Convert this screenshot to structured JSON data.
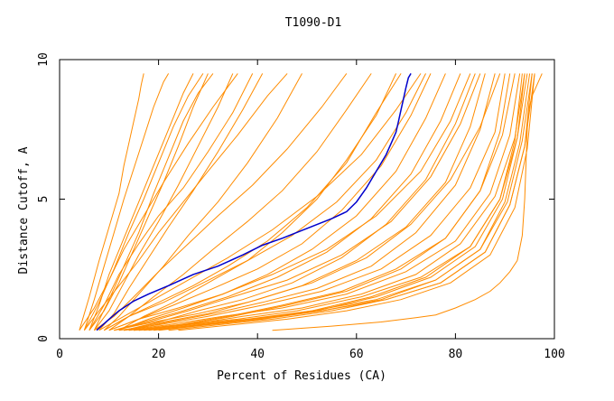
{
  "chart_data": {
    "type": "line",
    "title": "T1090-D1",
    "xlabel": "Percent of Residues (CA)",
    "ylabel": "Distance Cutoff, A",
    "xlim": [
      0,
      100
    ],
    "ylim": [
      0,
      10
    ],
    "x_ticks": [
      0,
      20,
      40,
      60,
      80,
      100
    ],
    "y_ticks": [
      0,
      5,
      10
    ],
    "x_tick_labels": [
      "0",
      "20",
      "40",
      "60",
      "80",
      "100"
    ],
    "y_tick_labels": [
      "0",
      "5",
      "10"
    ],
    "grid": false,
    "legend": "none",
    "colors": {
      "models": "#ff8c00",
      "highlight": "#0000cc",
      "axes": "#000000"
    },
    "highlight_series": {
      "x": [
        7.5,
        10,
        12,
        15,
        18,
        22,
        27,
        32,
        37,
        41,
        45,
        50,
        55,
        58,
        60,
        62,
        64,
        66,
        67,
        68,
        68.5,
        69,
        69.5,
        70,
        70.5,
        71
      ],
      "y": [
        0.3,
        0.7,
        1.0,
        1.35,
        1.6,
        1.9,
        2.3,
        2.6,
        3.0,
        3.35,
        3.6,
        3.95,
        4.3,
        4.55,
        4.9,
        5.4,
        6.0,
        6.6,
        7.0,
        7.4,
        7.8,
        8.2,
        8.6,
        9.0,
        9.35,
        9.5
      ]
    },
    "model_series": [
      {
        "x": [
          4,
          6,
          8,
          10,
          12,
          13,
          14,
          15,
          16,
          16.5,
          17
        ],
        "y": [
          0.3,
          1.5,
          2.8,
          4.0,
          5.2,
          6.2,
          7.0,
          7.8,
          8.6,
          9.1,
          9.5
        ]
      },
      {
        "x": [
          5,
          7,
          9,
          11,
          13,
          15,
          17,
          19,
          21,
          22
        ],
        "y": [
          0.3,
          1.4,
          2.6,
          3.8,
          5.0,
          6.1,
          7.2,
          8.3,
          9.2,
          9.5
        ]
      },
      {
        "x": [
          6,
          8,
          10,
          13,
          16,
          19,
          22,
          25,
          27
        ],
        "y": [
          0.3,
          1.2,
          2.3,
          3.6,
          4.9,
          6.2,
          7.5,
          8.8,
          9.5
        ]
      },
      {
        "x": [
          6,
          9,
          12,
          15,
          18,
          21,
          24,
          27,
          30
        ],
        "y": [
          0.3,
          1.0,
          2.0,
          3.2,
          4.4,
          5.6,
          6.9,
          8.3,
          9.5
        ]
      },
      {
        "x": [
          7,
          10,
          13,
          16,
          20,
          24,
          28,
          32,
          35
        ],
        "y": [
          0.3,
          1.0,
          2.0,
          3.0,
          4.2,
          5.5,
          6.9,
          8.3,
          9.5
        ]
      },
      {
        "x": [
          5,
          8,
          11,
          14,
          17,
          20,
          23,
          26,
          29
        ],
        "y": [
          0.3,
          1.3,
          2.5,
          3.8,
          5.0,
          6.3,
          7.6,
          8.7,
          9.5
        ]
      },
      {
        "x": [
          4,
          7,
          10,
          13,
          17,
          21,
          26,
          31,
          36
        ],
        "y": [
          0.3,
          1.1,
          2.1,
          3.2,
          4.4,
          5.6,
          7.0,
          8.3,
          9.5
        ]
      },
      {
        "x": [
          8,
          11,
          14,
          18,
          22,
          27,
          32,
          37,
          41
        ],
        "y": [
          0.3,
          0.9,
          1.8,
          2.9,
          4.0,
          5.3,
          6.7,
          8.2,
          9.5
        ]
      },
      {
        "x": [
          6,
          9,
          12,
          16,
          20,
          25,
          30,
          35,
          39
        ],
        "y": [
          0.3,
          1.2,
          2.3,
          3.4,
          4.4,
          5.4,
          6.7,
          8.1,
          9.5
        ]
      },
      {
        "x": [
          7,
          10,
          13,
          16,
          19,
          22,
          25,
          28,
          31
        ],
        "y": [
          0.3,
          1.4,
          2.6,
          3.8,
          5.2,
          6.5,
          7.8,
          8.8,
          9.5
        ]
      },
      {
        "x": [
          5,
          8,
          12,
          16,
          20,
          25,
          30,
          36,
          42,
          46
        ],
        "y": [
          0.3,
          1.0,
          1.9,
          2.8,
          3.8,
          4.9,
          6.0,
          7.3,
          8.7,
          9.5
        ]
      },
      {
        "x": [
          9,
          12,
          16,
          21,
          26,
          32,
          38,
          44,
          49
        ],
        "y": [
          0.3,
          0.8,
          1.6,
          2.6,
          3.7,
          4.9,
          6.3,
          7.9,
          9.5
        ]
      },
      {
        "x": [
          7,
          11,
          15,
          20,
          26,
          32,
          39,
          46,
          53,
          58
        ],
        "y": [
          0.3,
          0.8,
          1.5,
          2.4,
          3.4,
          4.4,
          5.5,
          6.8,
          8.3,
          9.5
        ]
      },
      {
        "x": [
          10,
          14,
          19,
          25,
          31,
          38,
          45,
          52,
          58,
          63
        ],
        "y": [
          0.3,
          0.8,
          1.5,
          2.3,
          3.2,
          4.2,
          5.3,
          6.7,
          8.2,
          9.5
        ]
      },
      {
        "x": [
          12,
          17,
          23,
          30,
          38,
          45,
          52,
          58,
          64,
          68
        ],
        "y": [
          0.3,
          0.8,
          1.3,
          2.0,
          2.8,
          3.8,
          5.0,
          6.4,
          8.0,
          9.5
        ]
      },
      {
        "x": [
          9,
          14,
          20,
          27,
          34,
          42,
          50,
          58,
          64,
          69
        ],
        "y": [
          0.3,
          0.8,
          1.3,
          1.9,
          2.6,
          3.5,
          4.7,
          6.3,
          8.1,
          9.5
        ]
      },
      {
        "x": [
          10,
          16,
          23,
          31,
          40,
          49,
          57,
          65,
          71,
          75
        ],
        "y": [
          0.3,
          0.7,
          1.2,
          1.8,
          2.5,
          3.4,
          4.6,
          6.2,
          8.0,
          9.5
        ]
      },
      {
        "x": [
          12,
          18,
          25,
          33,
          42,
          51,
          60,
          68,
          74,
          78
        ],
        "y": [
          0.3,
          0.7,
          1.1,
          1.6,
          2.3,
          3.2,
          4.4,
          6.0,
          7.9,
          9.5
        ]
      },
      {
        "x": [
          11,
          17,
          25,
          34,
          44,
          54,
          63,
          71,
          77,
          81
        ],
        "y": [
          0.3,
          0.6,
          1.0,
          1.5,
          2.2,
          3.1,
          4.3,
          5.9,
          7.8,
          9.5
        ]
      },
      {
        "x": [
          13,
          20,
          28,
          37,
          47,
          57,
          66,
          74,
          80,
          84
        ],
        "y": [
          0.3,
          0.6,
          1.0,
          1.4,
          2.0,
          2.9,
          4.1,
          5.7,
          7.7,
          9.5
        ]
      },
      {
        "x": [
          11,
          19,
          28,
          38,
          49,
          60,
          70,
          78,
          83,
          86
        ],
        "y": [
          0.3,
          0.6,
          0.9,
          1.3,
          1.9,
          2.8,
          4.0,
          5.6,
          7.6,
          9.5
        ]
      },
      {
        "x": [
          14,
          22,
          31,
          41,
          52,
          63,
          72,
          80,
          85,
          88
        ],
        "y": [
          0.3,
          0.6,
          0.9,
          1.3,
          1.8,
          2.6,
          3.8,
          5.5,
          7.5,
          9.5
        ]
      },
      {
        "x": [
          12,
          20,
          30,
          41,
          53,
          65,
          75,
          83,
          88,
          90
        ],
        "y": [
          0.3,
          0.5,
          0.8,
          1.2,
          1.7,
          2.5,
          3.7,
          5.4,
          7.4,
          9.5
        ]
      },
      {
        "x": [
          15,
          24,
          34,
          45,
          57,
          68,
          78,
          85,
          89,
          91
        ],
        "y": [
          0.3,
          0.5,
          0.8,
          1.2,
          1.7,
          2.5,
          3.6,
          5.3,
          7.4,
          9.5
        ]
      },
      {
        "x": [
          13,
          22,
          33,
          45,
          58,
          70,
          80,
          87,
          91,
          93
        ],
        "y": [
          0.3,
          0.5,
          0.8,
          1.1,
          1.6,
          2.4,
          3.5,
          5.2,
          7.3,
          9.5
        ]
      },
      {
        "x": [
          16,
          26,
          37,
          49,
          61,
          72,
          81,
          88,
          92,
          94
        ],
        "y": [
          0.3,
          0.5,
          0.8,
          1.1,
          1.6,
          2.3,
          3.4,
          5.1,
          7.2,
          9.5
        ]
      },
      {
        "x": [
          14,
          24,
          36,
          48,
          61,
          73,
          83,
          89,
          92,
          93.5
        ],
        "y": [
          0.3,
          0.5,
          0.7,
          1.0,
          1.5,
          2.2,
          3.3,
          5.0,
          7.1,
          9.5
        ]
      },
      {
        "x": [
          18,
          28,
          39,
          51,
          63,
          74,
          83,
          89,
          92.5,
          94.5
        ],
        "y": [
          0.3,
          0.5,
          0.7,
          1.0,
          1.5,
          2.2,
          3.3,
          5.0,
          7.2,
          9.5
        ]
      },
      {
        "x": [
          15,
          26,
          38,
          51,
          64,
          76,
          85,
          90,
          93,
          95
        ],
        "y": [
          0.3,
          0.5,
          0.7,
          1.0,
          1.4,
          2.1,
          3.2,
          4.9,
          7.0,
          9.5
        ]
      },
      {
        "x": [
          20,
          30,
          41,
          53,
          65,
          76,
          85,
          90.5,
          93.5,
          95.5
        ],
        "y": [
          0.3,
          0.5,
          0.7,
          1.0,
          1.4,
          2.1,
          3.2,
          4.9,
          7.1,
          9.5
        ]
      },
      {
        "x": [
          17,
          28,
          40,
          53,
          66,
          77,
          86,
          91,
          94,
          95.5
        ],
        "y": [
          0.3,
          0.5,
          0.7,
          1.0,
          1.4,
          2.0,
          3.1,
          4.8,
          6.9,
          9.5
        ]
      },
      {
        "x": [
          13,
          21,
          30,
          40,
          51,
          62,
          71,
          79,
          85,
          89
        ],
        "y": [
          0.3,
          0.6,
          0.9,
          1.4,
          2.0,
          2.9,
          4.1,
          5.7,
          7.6,
          9.5
        ]
      },
      {
        "x": [
          16,
          25,
          35,
          46,
          58,
          69,
          78,
          85,
          89.5,
          92
        ],
        "y": [
          0.3,
          0.5,
          0.8,
          1.2,
          1.7,
          2.5,
          3.6,
          5.3,
          7.3,
          9.5
        ]
      },
      {
        "x": [
          19,
          29,
          40,
          52,
          64,
          75,
          84,
          89.5,
          92.5,
          94
        ],
        "y": [
          0.3,
          0.5,
          0.7,
          1.0,
          1.5,
          2.2,
          3.3,
          5.0,
          7.2,
          9.5
        ]
      },
      {
        "x": [
          11,
          18,
          26,
          35,
          46,
          57,
          67,
          75,
          81,
          85
        ],
        "y": [
          0.3,
          0.6,
          1.0,
          1.5,
          2.1,
          3.0,
          4.2,
          5.8,
          7.7,
          9.5
        ]
      },
      {
        "x": [
          10,
          16,
          24,
          33,
          43,
          54,
          64,
          73,
          79,
          83
        ],
        "y": [
          0.3,
          0.7,
          1.1,
          1.6,
          2.3,
          3.2,
          4.4,
          6.0,
          7.8,
          9.5
        ]
      },
      {
        "x": [
          8,
          13,
          19,
          26,
          34,
          43,
          52,
          61,
          68,
          73
        ],
        "y": [
          0.3,
          0.8,
          1.4,
          2.1,
          2.9,
          3.9,
          5.1,
          6.6,
          8.2,
          9.5
        ]
      },
      {
        "x": [
          9,
          14,
          21,
          29,
          38,
          47,
          56,
          64,
          70,
          74
        ],
        "y": [
          0.3,
          0.8,
          1.3,
          2.0,
          2.8,
          3.7,
          4.9,
          6.4,
          8.1,
          9.5
        ]
      },
      {
        "x": [
          22,
          32,
          43,
          55,
          66,
          77,
          86,
          91,
          94,
          96
        ],
        "y": [
          0.3,
          0.5,
          0.7,
          1.0,
          1.4,
          2.0,
          3.1,
          4.8,
          6.9,
          9.5
        ]
      },
      {
        "x": [
          24,
          35,
          46,
          58,
          69,
          79,
          87,
          92,
          94.5,
          96
        ],
        "y": [
          0.3,
          0.5,
          0.7,
          1.0,
          1.4,
          2.0,
          3.0,
          4.7,
          6.8,
          9.5
        ]
      },
      {
        "x": [
          43,
          55,
          65,
          72,
          76,
          80,
          84,
          87,
          89,
          91,
          92.5
        ],
        "y": [
          0.3,
          0.45,
          0.6,
          0.75,
          0.85,
          1.1,
          1.4,
          1.7,
          2.0,
          2.4,
          2.8
        ]
      },
      {
        "x": [
          92.5,
          93.5,
          94,
          94.3,
          94.5,
          94.8,
          95.5,
          96.5,
          97.5
        ],
        "y": [
          2.8,
          3.7,
          5.0,
          6.5,
          7.5,
          8.2,
          8.7,
          9.1,
          9.5
        ]
      }
    ]
  }
}
